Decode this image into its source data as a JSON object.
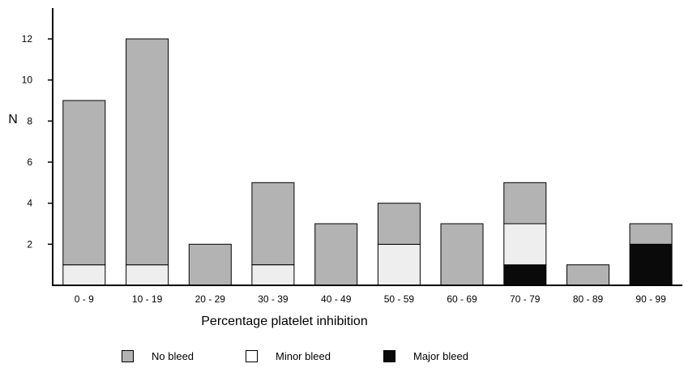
{
  "chart_data": {
    "type": "bar",
    "stacked": true,
    "xlabel": "Percentage platelet inhibition",
    "ylabel": "N",
    "ylim": [
      0,
      13.5
    ],
    "yticks": [
      2,
      4,
      6,
      8,
      10,
      12
    ],
    "grid": false,
    "legend_position": "bottom",
    "categories": [
      "0 - 9",
      "10 - 19",
      "20 - 29",
      "30 - 39",
      "40 - 49",
      "50 - 59",
      "60 - 69",
      "70 - 79",
      "80 - 89",
      "90 - 99"
    ],
    "series": [
      {
        "name": "Major bleed",
        "color": "#0a0a0a",
        "values": [
          0,
          0,
          0,
          0,
          0,
          0,
          0,
          1,
          0,
          2
        ]
      },
      {
        "name": "Minor bleed",
        "color": "#eeeeee",
        "values": [
          1,
          1,
          0,
          1,
          0,
          2,
          0,
          2,
          0,
          0
        ]
      },
      {
        "name": "No bleed",
        "color": "#b3b3b3",
        "values": [
          8,
          11,
          2,
          4,
          3,
          2,
          3,
          2,
          1,
          1
        ]
      }
    ]
  },
  "legend": {
    "items": [
      {
        "label": "No bleed",
        "color": "#b3b3b3"
      },
      {
        "label": "Minor bleed",
        "color": "#ffffff"
      },
      {
        "label": "Major bleed",
        "color": "#0a0a0a"
      }
    ]
  }
}
